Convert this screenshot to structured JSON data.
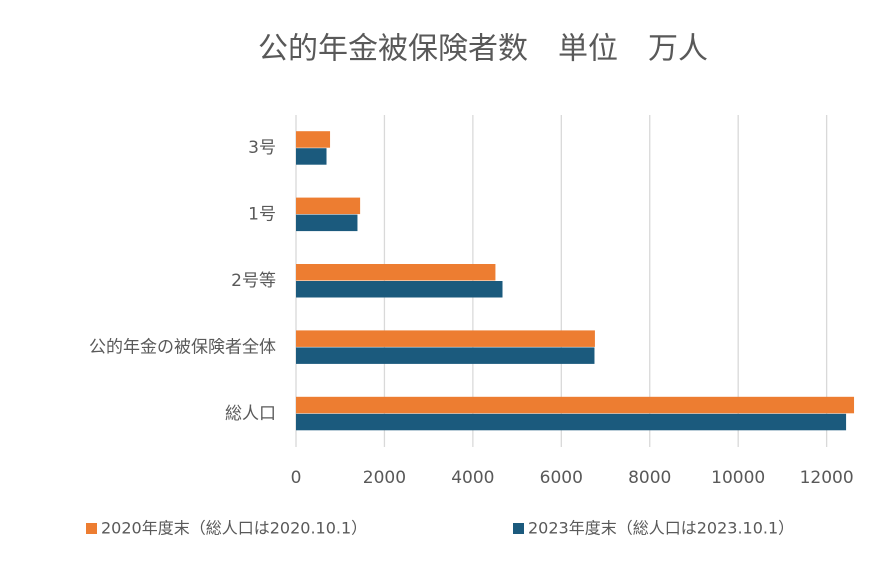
{
  "chart_data": {
    "type": "hbar",
    "title": "公的年金被保険者数　単位　万人",
    "categories": [
      "3号",
      "1号",
      "2号等",
      "公的年金の被保険者全体",
      "総人口"
    ],
    "series": [
      {
        "name": "2020年度末（総人口は2020.10.1）",
        "color": "#ed7d31",
        "values": [
          770,
          1450,
          4510,
          6760,
          12620
        ]
      },
      {
        "name": "2023年度末（総人口は2023.10.1）",
        "color": "#1b5a7d",
        "values": [
          690,
          1390,
          4670,
          6750,
          12440
        ]
      }
    ],
    "xlim": [
      0,
      12800
    ],
    "xticks": [
      0,
      2000,
      4000,
      6000,
      8000,
      10000,
      12000
    ],
    "grid": true,
    "legend": "bottom"
  }
}
